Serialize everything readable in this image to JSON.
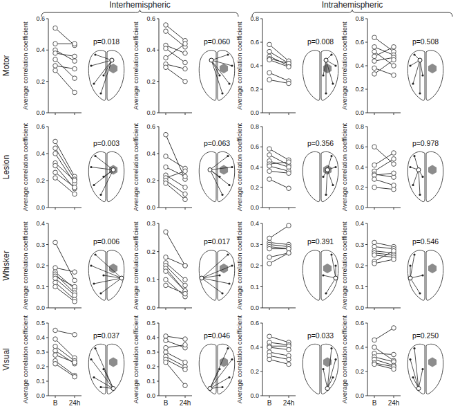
{
  "figure": {
    "groups": [
      "Interhemispheric",
      "Intrahemispheric"
    ],
    "rows": [
      "Motor",
      "Lesion",
      "Whisker",
      "Visual"
    ]
  },
  "chart_data": [
    {
      "type": "line",
      "y_label": "Average correlation coefficient",
      "categories": [
        "B",
        "24h"
      ],
      "tick_labels": "y",
      "color": "#333333",
      "marker": "circle",
      "ylim": [
        0,
        0.6
      ],
      "yticks": [
        {
          "value": 0,
          "label": "0.0"
        },
        0.2,
        0.4,
        0.6
      ],
      "annotation": "p=0.018",
      "series": [
        {
          "values": [
            0.54,
            0.43
          ]
        },
        {
          "values": [
            0.44,
            0.44
          ]
        },
        {
          "values": [
            0.4,
            0.33
          ]
        },
        {
          "values": [
            0.38,
            0.36
          ]
        },
        {
          "values": [
            0.34,
            0.22
          ]
        },
        {
          "values": [
            0.3,
            0.28
          ]
        },
        {
          "values": [
            0.27,
            0.13
          ]
        }
      ]
    },
    {
      "type": "line",
      "y_label": "Average correlation coefficient",
      "categories": [
        "B",
        "24h"
      ],
      "tick_labels": "y",
      "color": "#333333",
      "marker": "circle",
      "ylim": [
        0,
        0.6
      ],
      "yticks": [
        {
          "value": 0,
          "label": "0.0"
        },
        0.2,
        0.4,
        0.6
      ],
      "annotation": "p=0.060",
      "series": [
        {
          "values": [
            0.56,
            0.46
          ]
        },
        {
          "values": [
            0.52,
            0.42
          ]
        },
        {
          "values": [
            0.43,
            0.38
          ]
        },
        {
          "values": [
            0.41,
            0.32
          ]
        },
        {
          "values": [
            0.35,
            0.44
          ]
        },
        {
          "values": [
            0.31,
            0.28
          ]
        },
        {
          "values": [
            0.29,
            0.2
          ]
        }
      ]
    },
    {
      "type": "line",
      "y_label": "Average correlation coefficient",
      "categories": [
        "B",
        "24h"
      ],
      "tick_labels": "y",
      "color": "#333333",
      "marker": "circle",
      "ylim": [
        0,
        0.8
      ],
      "yticks": [
        {
          "value": 0,
          "label": "0.0"
        },
        0.2,
        0.4,
        0.6,
        0.8
      ],
      "annotation": "p=0.008",
      "series": [
        {
          "values": [
            0.58,
            0.44
          ]
        },
        {
          "values": [
            0.52,
            0.42
          ]
        },
        {
          "values": [
            0.48,
            0.4
          ]
        },
        {
          "values": [
            0.46,
            0.42
          ]
        },
        {
          "values": [
            0.45,
            0.39
          ]
        },
        {
          "values": [
            0.34,
            0.27
          ]
        },
        {
          "values": [
            0.28,
            0.25
          ]
        }
      ]
    },
    {
      "type": "line",
      "y_label": "Average correlation coefficient",
      "categories": [
        "B",
        "24h"
      ],
      "tick_labels": "y",
      "color": "#333333",
      "marker": "circle",
      "ylim": [
        0,
        0.8
      ],
      "yticks": [
        {
          "value": 0,
          "label": "0.0"
        },
        0.2,
        0.4,
        0.6,
        0.8
      ],
      "annotation": "p=0.508",
      "series": [
        {
          "values": [
            0.64,
            0.52
          ]
        },
        {
          "values": [
            0.56,
            0.49
          ]
        },
        {
          "values": [
            0.52,
            0.4
          ]
        },
        {
          "values": [
            0.48,
            0.56
          ]
        },
        {
          "values": [
            0.44,
            0.47
          ]
        },
        {
          "values": [
            0.38,
            0.32
          ]
        },
        {
          "values": [
            0.33,
            0.45
          ]
        }
      ]
    },
    {
      "type": "line",
      "y_label": "Average correlation coefficient",
      "categories": [
        "B",
        "24h"
      ],
      "tick_labels": "y",
      "color": "#333333",
      "marker": "circle",
      "ylim": [
        0,
        0.6
      ],
      "yticks": [
        {
          "value": 0,
          "label": "0.0"
        },
        0.2,
        0.4,
        0.6
      ],
      "annotation": "p=0.003",
      "series": [
        {
          "values": [
            0.49,
            0.23
          ]
        },
        {
          "values": [
            0.44,
            0.21
          ]
        },
        {
          "values": [
            0.4,
            0.18
          ]
        },
        {
          "values": [
            0.33,
            0.2
          ]
        },
        {
          "values": [
            0.31,
            0.14
          ]
        },
        {
          "values": [
            0.26,
            0.15
          ]
        },
        {
          "values": [
            0.22,
            0.1
          ]
        }
      ]
    },
    {
      "type": "line",
      "y_label": "Average correlation coefficient",
      "categories": [
        "B",
        "24h"
      ],
      "tick_labels": "y",
      "color": "#333333",
      "marker": "circle",
      "ylim": [
        0,
        0.6
      ],
      "yticks": [
        {
          "value": 0,
          "label": "0.0"
        },
        0.2,
        0.4,
        0.6
      ],
      "annotation": "p=0.063",
      "series": [
        {
          "values": [
            0.54,
            0.21
          ]
        },
        {
          "values": [
            0.38,
            0.29
          ]
        },
        {
          "values": [
            0.3,
            0.23
          ]
        },
        {
          "values": [
            0.24,
            0.15
          ]
        },
        {
          "values": [
            0.22,
            0.27
          ]
        },
        {
          "values": [
            0.2,
            0.1
          ]
        },
        {
          "values": [
            0.18,
            0.06
          ]
        }
      ]
    },
    {
      "type": "line",
      "y_label": "Average correlation coefficient",
      "categories": [
        "B",
        "24h"
      ],
      "tick_labels": "y",
      "color": "#333333",
      "marker": "circle",
      "ylim": [
        0,
        0.8
      ],
      "yticks": [
        {
          "value": 0,
          "label": "0.0"
        },
        0.2,
        0.4,
        0.6,
        0.8
      ],
      "annotation": "p=0.356",
      "series": [
        {
          "values": [
            0.58,
            0.47
          ]
        },
        {
          "values": [
            0.52,
            0.42
          ]
        },
        {
          "values": [
            0.46,
            0.4
          ]
        },
        {
          "values": [
            0.43,
            0.45
          ]
        },
        {
          "values": [
            0.41,
            0.36
          ]
        },
        {
          "values": [
            0.36,
            0.34
          ]
        },
        {
          "values": [
            0.28,
            0.19
          ]
        }
      ]
    },
    {
      "type": "line",
      "y_label": "Average correlation coefficient",
      "categories": [
        "B",
        "24h"
      ],
      "tick_labels": "y",
      "color": "#333333",
      "marker": "circle",
      "ylim": [
        0,
        0.8
      ],
      "yticks": [
        {
          "value": 0,
          "label": "0.0"
        },
        0.2,
        0.4,
        0.6,
        0.8
      ],
      "annotation": "p=0.978",
      "series": [
        {
          "values": [
            0.6,
            0.43
          ]
        },
        {
          "values": [
            0.42,
            0.54
          ]
        },
        {
          "values": [
            0.36,
            0.48
          ]
        },
        {
          "values": [
            0.33,
            0.3
          ]
        },
        {
          "values": [
            0.32,
            0.34
          ]
        },
        {
          "values": [
            0.28,
            0.22
          ]
        },
        {
          "values": [
            0.2,
            0.18
          ]
        }
      ]
    },
    {
      "type": "line",
      "y_label": "Average correlation coefficient",
      "categories": [
        "B",
        "24h"
      ],
      "tick_labels": "y",
      "color": "#333333",
      "marker": "circle",
      "ylim": [
        0,
        0.4
      ],
      "yticks": [
        {
          "value": 0,
          "label": "0.0"
        },
        0.1,
        0.2,
        0.3,
        0.4
      ],
      "annotation": "p=0.006",
      "series": [
        {
          "values": [
            0.31,
            0.13
          ]
        },
        {
          "values": [
            0.19,
            0.17
          ]
        },
        {
          "values": [
            0.17,
            0.09
          ]
        },
        {
          "values": [
            0.16,
            0.07
          ]
        },
        {
          "values": [
            0.15,
            0.1
          ]
        },
        {
          "values": [
            0.14,
            0.06
          ]
        },
        {
          "values": [
            0.12,
            0.04
          ]
        },
        {
          "values": [
            0.1,
            0.03
          ]
        }
      ]
    },
    {
      "type": "line",
      "y_label": "Average correlation coefficient",
      "categories": [
        "B",
        "24h"
      ],
      "tick_labels": "y",
      "color": "#333333",
      "marker": "circle",
      "ylim": [
        0,
        0.3
      ],
      "yticks": [
        {
          "value": 0,
          "label": "0.0"
        },
        0.1,
        0.2,
        0.3
      ],
      "annotation": "p=0.017",
      "series": [
        {
          "values": [
            0.27,
            0.15
          ]
        },
        {
          "values": [
            0.18,
            0.15
          ]
        },
        {
          "values": [
            0.16,
            0.1
          ]
        },
        {
          "values": [
            0.15,
            0.08
          ]
        },
        {
          "values": [
            0.14,
            0.06
          ]
        },
        {
          "values": [
            0.13,
            0.06
          ]
        },
        {
          "values": [
            0.1,
            0.04
          ]
        },
        {
          "values": [
            0.08,
            0.05
          ]
        }
      ]
    },
    {
      "type": "line",
      "y_label": "Average correlation coefficient",
      "categories": [
        "B",
        "24h"
      ],
      "tick_labels": "y",
      "color": "#333333",
      "marker": "circle",
      "ylim": [
        0,
        0.4
      ],
      "yticks": [
        {
          "value": 0,
          "label": "0.0"
        },
        0.1,
        0.2,
        0.3,
        0.4
      ],
      "annotation": "p=0.391",
      "series": [
        {
          "values": [
            0.33,
            0.39
          ]
        },
        {
          "values": [
            0.31,
            0.3
          ]
        },
        {
          "values": [
            0.3,
            0.29
          ]
        },
        {
          "values": [
            0.29,
            0.28
          ]
        },
        {
          "values": [
            0.28,
            0.28
          ]
        },
        {
          "values": [
            0.24,
            0.26
          ]
        },
        {
          "values": [
            0.21,
            0.26
          ]
        }
      ]
    },
    {
      "type": "line",
      "y_label": "Average correlation coefficient",
      "categories": [
        "B",
        "24h"
      ],
      "tick_labels": "y",
      "color": "#333333",
      "marker": "circle",
      "ylim": [
        0,
        0.4
      ],
      "yticks": [
        {
          "value": 0,
          "label": "0.0"
        },
        0.1,
        0.2,
        0.3,
        0.4
      ],
      "annotation": "p=0.546",
      "series": [
        {
          "values": [
            0.31,
            0.29
          ]
        },
        {
          "values": [
            0.29,
            0.28
          ]
        },
        {
          "values": [
            0.27,
            0.26
          ]
        },
        {
          "values": [
            0.26,
            0.25
          ]
        },
        {
          "values": [
            0.25,
            0.24
          ]
        },
        {
          "values": [
            0.22,
            0.27
          ]
        },
        {
          "values": [
            0.21,
            0.23
          ]
        }
      ]
    },
    {
      "type": "line",
      "y_label": "Average correlation coefficient",
      "categories": [
        "B",
        "24h"
      ],
      "color": "#333333",
      "marker": "circle",
      "ylim": [
        0,
        0.5
      ],
      "yticks": [
        {
          "value": 0,
          "label": "0.0"
        },
        0.1,
        0.2,
        0.3,
        0.4,
        0.5
      ],
      "annotation": "p=0.037",
      "series": [
        {
          "values": [
            0.45,
            0.42
          ]
        },
        {
          "values": [
            0.39,
            0.26
          ]
        },
        {
          "values": [
            0.34,
            0.24
          ]
        },
        {
          "values": [
            0.31,
            0.22
          ]
        },
        {
          "values": [
            0.28,
            0.23
          ]
        },
        {
          "values": [
            0.24,
            0.14
          ]
        },
        {
          "values": [
            0.22,
            0.13
          ]
        }
      ]
    },
    {
      "type": "line",
      "y_label": "Average correlation coefficient",
      "categories": [
        "B",
        "24h"
      ],
      "color": "#333333",
      "marker": "circle",
      "ylim": [
        0,
        0.5
      ],
      "yticks": [
        {
          "value": 0,
          "label": "0.0"
        },
        0.1,
        0.2,
        0.3,
        0.4,
        0.5
      ],
      "annotation": "p=0.046",
      "series": [
        {
          "values": [
            0.41,
            0.39
          ]
        },
        {
          "values": [
            0.38,
            0.33
          ]
        },
        {
          "values": [
            0.33,
            0.35
          ]
        },
        {
          "values": [
            0.3,
            0.23
          ]
        },
        {
          "values": [
            0.27,
            0.2
          ]
        },
        {
          "values": [
            0.25,
            0.18
          ]
        },
        {
          "values": [
            0.23,
            0.07
          ]
        }
      ]
    },
    {
      "type": "line",
      "y_label": "Average correlation coefficient",
      "categories": [
        "B",
        "24h"
      ],
      "color": "#333333",
      "marker": "circle",
      "ylim": [
        0,
        0.6
      ],
      "yticks": [
        {
          "value": 0,
          "label": "0.0"
        },
        0.2,
        0.4,
        0.6
      ],
      "annotation": "p=0.033",
      "series": [
        {
          "values": [
            0.49,
            0.44
          ]
        },
        {
          "values": [
            0.44,
            0.42
          ]
        },
        {
          "values": [
            0.41,
            0.41
          ]
        },
        {
          "values": [
            0.4,
            0.38
          ]
        },
        {
          "values": [
            0.36,
            0.33
          ]
        },
        {
          "values": [
            0.33,
            0.3
          ]
        },
        {
          "values": [
            0.3,
            0.26
          ]
        }
      ]
    },
    {
      "type": "line",
      "y_label": "Average correlation coefficient",
      "categories": [
        "B",
        "24h"
      ],
      "color": "#333333",
      "marker": "circle",
      "ylim": [
        0,
        0.6
      ],
      "yticks": [
        {
          "value": 0,
          "label": "0.0"
        },
        0.2,
        0.4,
        0.6
      ],
      "annotation": "p=0.250",
      "series": [
        {
          "values": [
            0.46,
            0.56
          ]
        },
        {
          "values": [
            0.4,
            0.29
          ]
        },
        {
          "values": [
            0.35,
            0.34
          ]
        },
        {
          "values": [
            0.32,
            0.28
          ]
        },
        {
          "values": [
            0.3,
            0.25
          ]
        },
        {
          "values": [
            0.27,
            0.24
          ]
        },
        {
          "values": [
            0.26,
            0.22
          ]
        }
      ]
    }
  ]
}
